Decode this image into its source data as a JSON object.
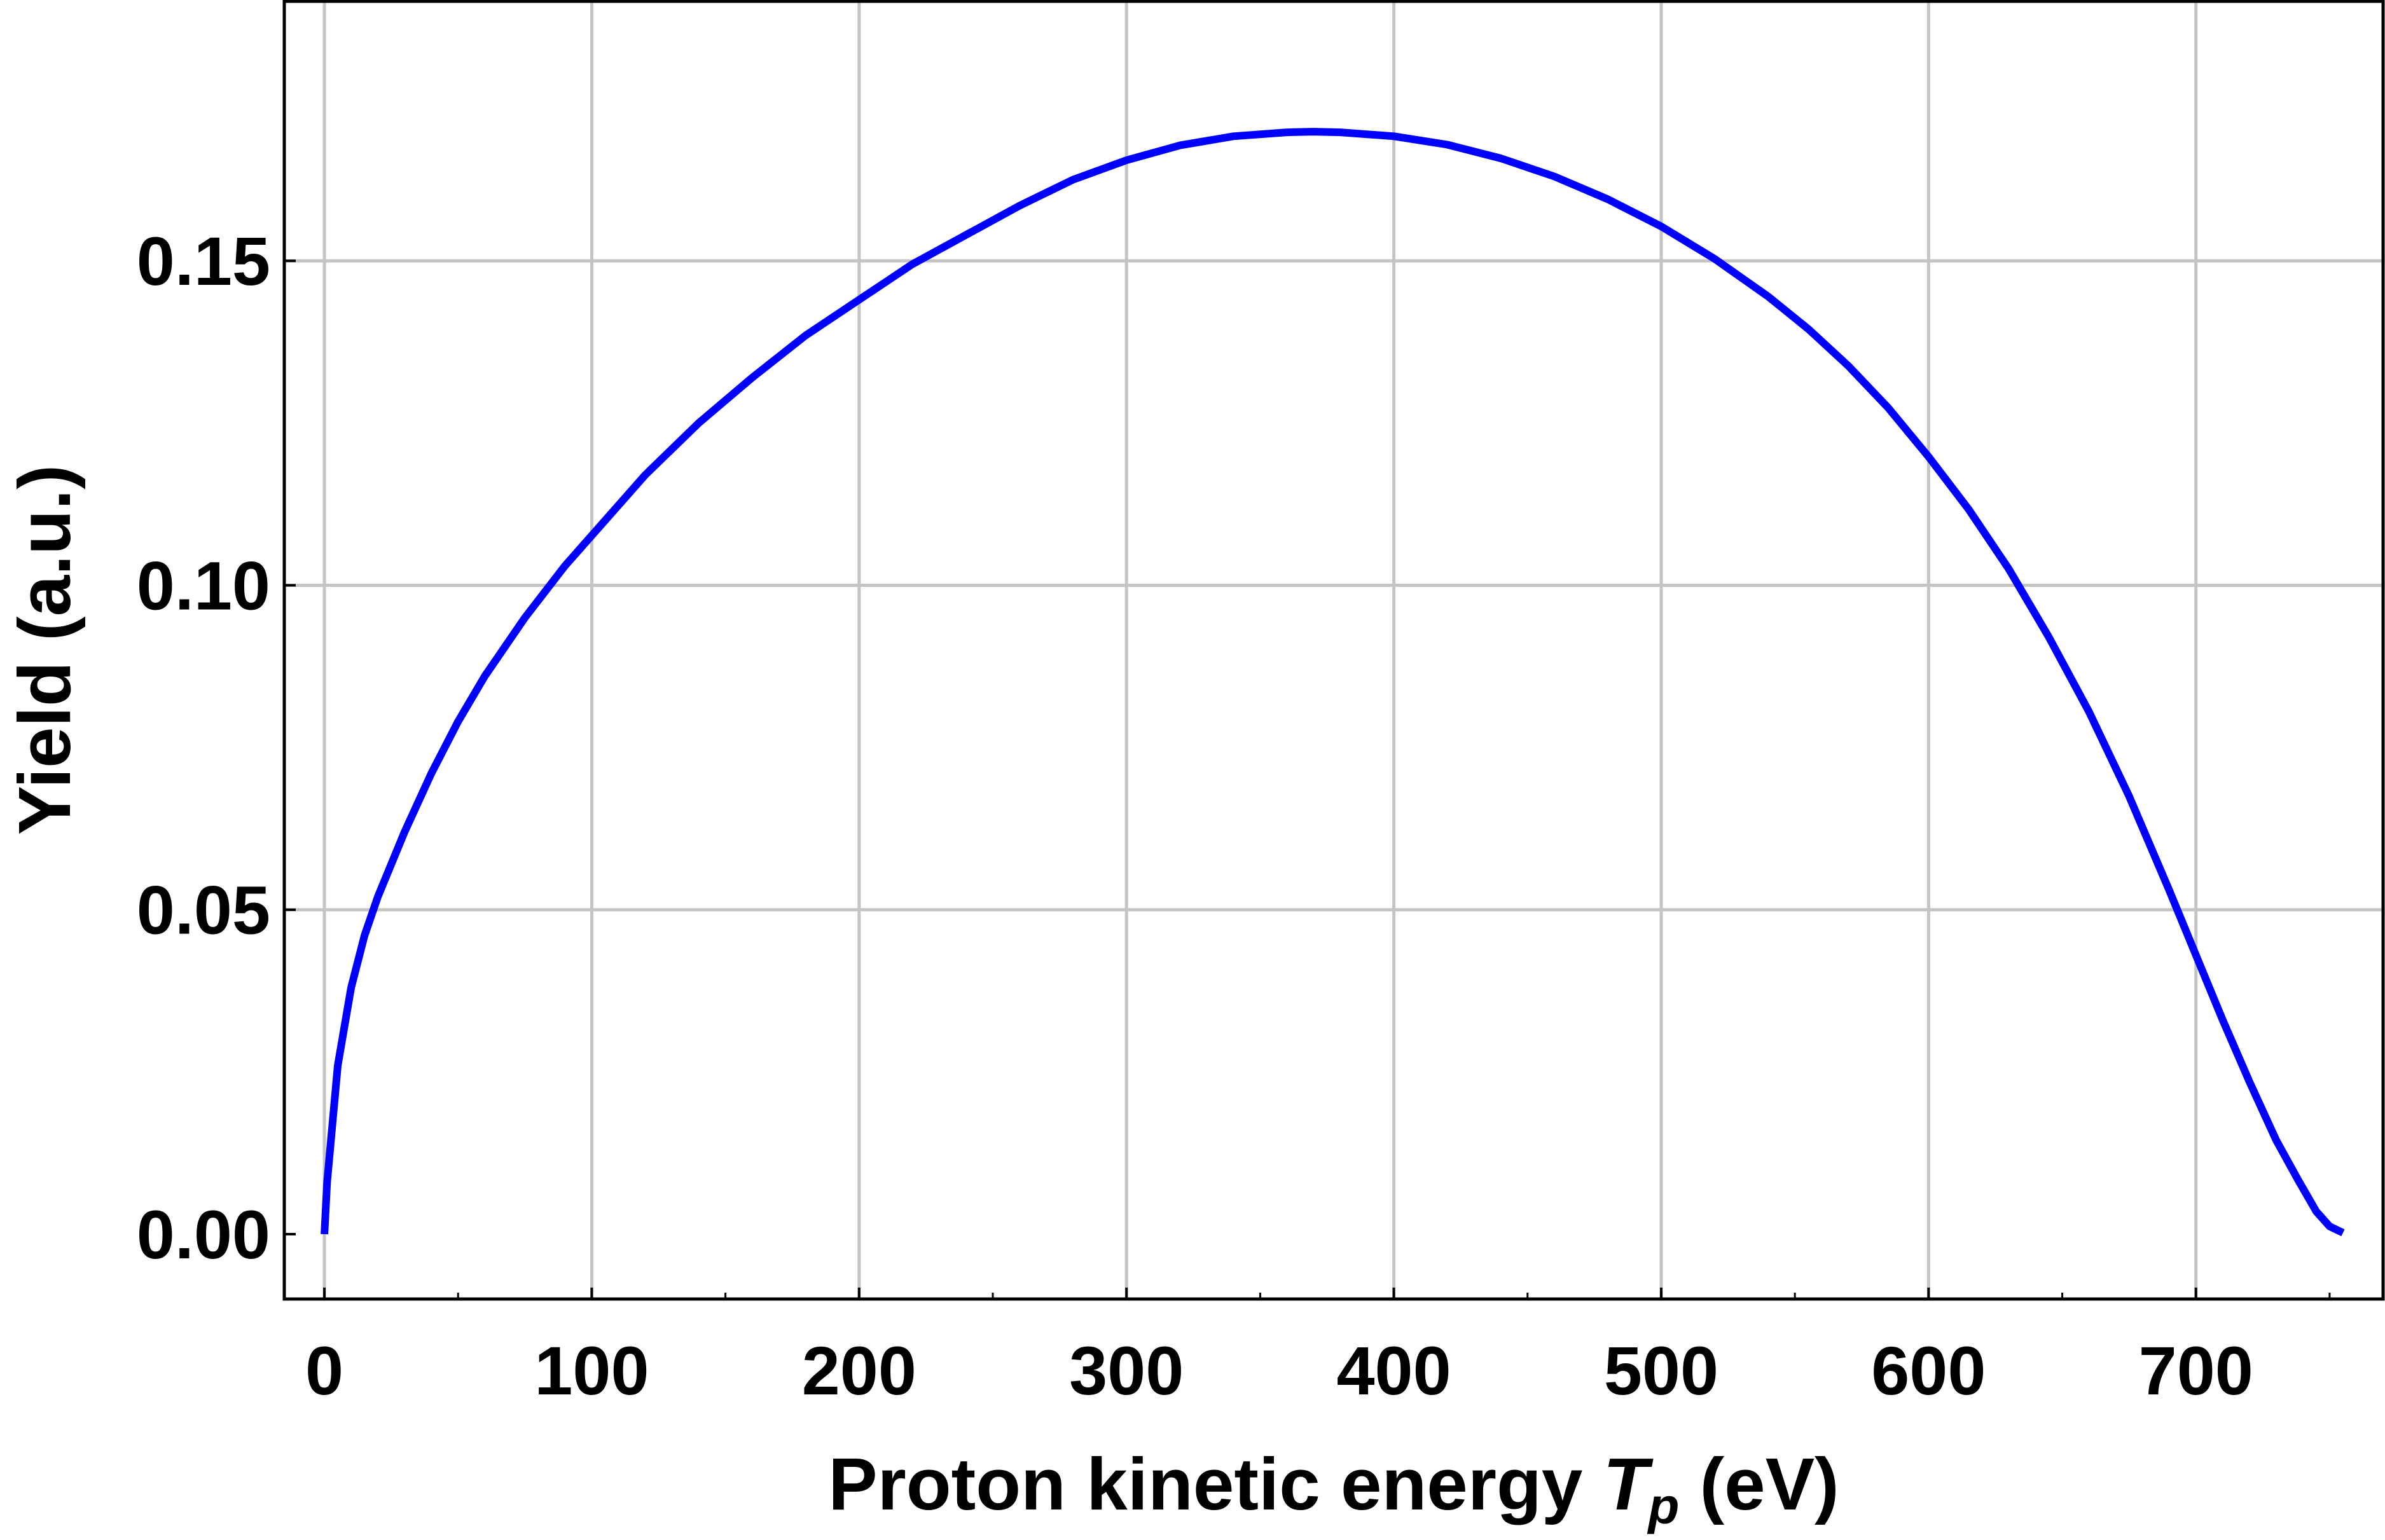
{
  "chart_data": {
    "type": "line",
    "title": "",
    "xlabel": "Proton kinetic energy",
    "xlabel_symbol": "T",
    "xlabel_subscript": "p",
    "xlabel_unit": "(eV)",
    "ylabel": "Yield (a.u.)",
    "xlim": [
      -15,
      770
    ],
    "ylim": [
      -0.01,
      0.19
    ],
    "x_ticks": [
      0,
      100,
      200,
      300,
      400,
      500,
      600,
      700
    ],
    "x_tick_labels": [
      "0",
      "100",
      "200",
      "300",
      "400",
      "500",
      "600",
      "700"
    ],
    "y_ticks": [
      0.0,
      0.05,
      0.1,
      0.15
    ],
    "y_tick_labels": [
      "0.00",
      "0.05",
      "0.10",
      "0.15"
    ],
    "grid": true,
    "legend": "none",
    "series": [
      {
        "color": "#0000ff",
        "x": [
          0,
          1,
          5,
          10,
          15,
          20,
          30,
          40,
          50,
          60,
          75,
          90,
          105,
          120,
          140,
          160,
          180,
          200,
          220,
          240,
          260,
          280,
          300,
          320,
          340,
          360,
          370,
          380,
          400,
          420,
          440,
          460,
          480,
          500,
          520,
          540,
          555,
          570,
          585,
          600,
          615,
          630,
          645,
          660,
          675,
          690,
          700,
          710,
          720,
          730,
          738,
          745,
          750,
          755
        ],
        "y": [
          0.0,
          0.008,
          0.026,
          0.038,
          0.046,
          0.052,
          0.062,
          0.071,
          0.079,
          0.086,
          0.095,
          0.103,
          0.11,
          0.117,
          0.125,
          0.132,
          0.1385,
          0.144,
          0.1495,
          0.154,
          0.1585,
          0.1625,
          0.1655,
          0.1678,
          0.1692,
          0.1698,
          0.1699,
          0.1698,
          0.1692,
          0.1679,
          0.1658,
          0.163,
          0.1595,
          0.1553,
          0.1503,
          0.1445,
          0.1395,
          0.1338,
          0.1273,
          0.1198,
          0.1117,
          0.1025,
          0.092,
          0.0805,
          0.0675,
          0.053,
          0.043,
          0.033,
          0.0235,
          0.0145,
          0.0085,
          0.0035,
          0.0012,
          0.0002
        ]
      }
    ]
  }
}
